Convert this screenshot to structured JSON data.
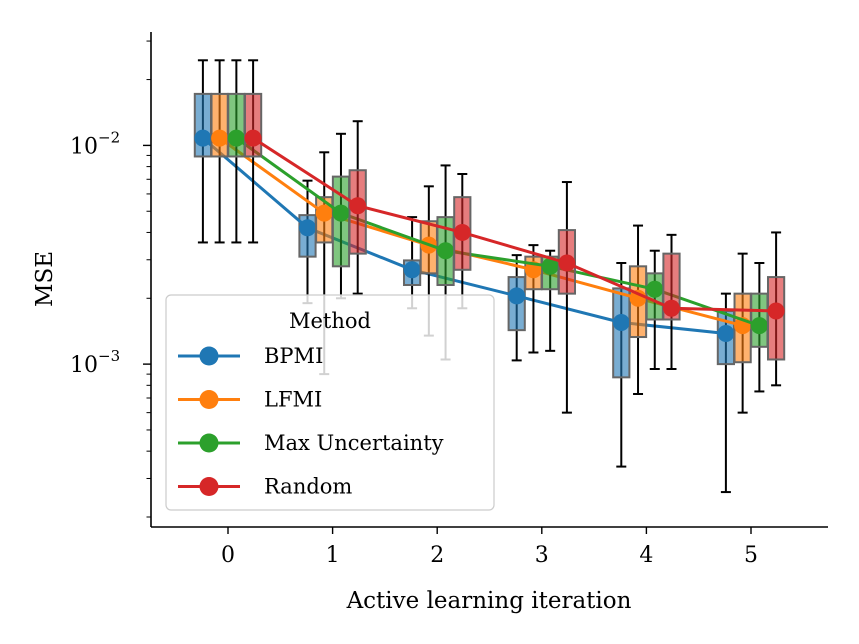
{
  "chart_data": {
    "type": "box",
    "xlabel": "Active learning iteration",
    "ylabel": "MSE",
    "yscale": "log",
    "ylim": [
      0.00018,
      0.033
    ],
    "x": [
      0,
      1,
      2,
      3,
      4,
      5
    ],
    "y_ticks": [
      {
        "base": "10",
        "exp": "−2",
        "value": 0.01
      },
      {
        "base": "10",
        "exp": "−3",
        "value": 0.001
      }
    ],
    "legend": {
      "title": "Method",
      "position": "lower-left"
    },
    "series": [
      {
        "name": "BPMI",
        "color": "#1f77b4",
        "mean": [
          0.0108,
          0.0042,
          0.0027,
          0.00205,
          0.00155,
          0.00138
        ],
        "median": [
          0.0108,
          0.0042,
          0.0027,
          0.00205,
          0.00155,
          0.00138
        ],
        "q1": [
          0.0089,
          0.0031,
          0.0023,
          0.00143,
          0.00087,
          0.001
        ],
        "q3": [
          0.0172,
          0.0048,
          0.00298,
          0.0025,
          0.00222,
          0.00175
        ],
        "whislo": [
          0.0036,
          0.0019,
          0.0018,
          0.00104,
          0.00034,
          0.00026
        ],
        "whishi": [
          0.0245,
          0.0069,
          0.0047,
          0.00315,
          0.0029,
          0.0021
        ]
      },
      {
        "name": "LFMI",
        "color": "#ff7f0e",
        "mean": [
          0.0108,
          0.0049,
          0.0035,
          0.0027,
          0.002,
          0.0015
        ],
        "median": [
          0.0108,
          0.0049,
          0.0035,
          0.0027,
          0.002,
          0.0015
        ],
        "q1": [
          0.0089,
          0.0036,
          0.0026,
          0.0022,
          0.00133,
          0.00102
        ],
        "q3": [
          0.0172,
          0.0058,
          0.0045,
          0.0031,
          0.0028,
          0.0021
        ],
        "whislo": [
          0.0036,
          0.0009,
          0.00135,
          0.00113,
          0.00073,
          0.0006
        ],
        "whishi": [
          0.0245,
          0.0093,
          0.0065,
          0.0035,
          0.0043,
          0.0032
        ]
      },
      {
        "name": "Max Uncertainty",
        "color": "#2ca02c",
        "mean": [
          0.0108,
          0.0049,
          0.0033,
          0.0028,
          0.0022,
          0.0015
        ],
        "median": [
          0.0108,
          0.0049,
          0.0033,
          0.0028,
          0.0022,
          0.0015
        ],
        "q1": [
          0.0089,
          0.0028,
          0.0023,
          0.0022,
          0.0016,
          0.0012
        ],
        "q3": [
          0.0172,
          0.0072,
          0.0047,
          0.0031,
          0.0026,
          0.0021
        ],
        "whislo": [
          0.0036,
          0.002,
          0.00105,
          0.00115,
          0.00095,
          0.00075
        ],
        "whishi": [
          0.0245,
          0.0113,
          0.0081,
          0.0033,
          0.0033,
          0.0029
        ]
      },
      {
        "name": "Random",
        "color": "#d62728",
        "mean": [
          0.0108,
          0.0053,
          0.004,
          0.0029,
          0.0018,
          0.00175
        ],
        "median": [
          0.0108,
          0.0053,
          0.004,
          0.0029,
          0.0018,
          0.00175
        ],
        "q1": [
          0.0089,
          0.0032,
          0.0027,
          0.0021,
          0.0016,
          0.00105
        ],
        "q3": [
          0.0172,
          0.0077,
          0.0058,
          0.0041,
          0.0032,
          0.0025
        ],
        "whislo": [
          0.0036,
          0.0021,
          0.0018,
          0.0006,
          0.00095,
          0.0008
        ],
        "whishi": [
          0.0245,
          0.0129,
          0.0074,
          0.0068,
          0.0039,
          0.004
        ]
      }
    ]
  }
}
